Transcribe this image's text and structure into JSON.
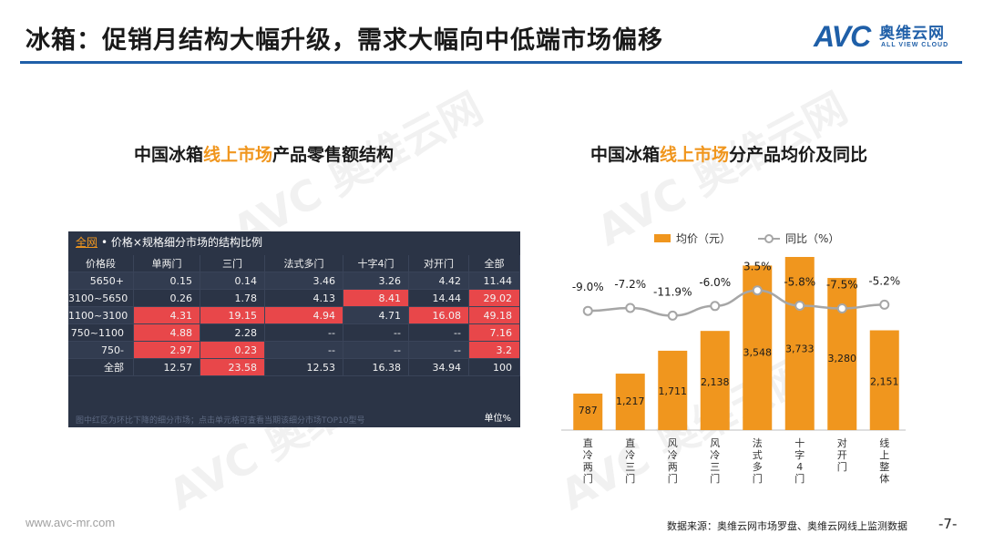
{
  "header": {
    "title": "冰箱：促销月结构大幅升级，需求大幅向中低端市场偏移",
    "logo_main": "AVC",
    "logo_cn": "奥维云网",
    "logo_en": "ALL VIEW CLOUD"
  },
  "colors": {
    "accent": "#f0961e",
    "brand": "#1f5fa8",
    "table_bg": "#2b3446",
    "hot": "#e8474a",
    "line": "#a6a6a6"
  },
  "left": {
    "title_pre": "中国冰箱",
    "title_hl": "线上市场",
    "title_post": "产品零售额结构",
    "table": {
      "tab": "全网",
      "caption": "• 价格×规格细分市场的结构比例",
      "columns": [
        "价格段",
        "单两门",
        "三门",
        "法式多门",
        "十字4门",
        "对开门",
        "全部"
      ],
      "rows": [
        {
          "label": "5650+",
          "cells": [
            "0.15",
            "0.14",
            "3.46",
            "3.26",
            "4.42",
            "11.44"
          ],
          "hot": [
            false,
            false,
            false,
            false,
            false,
            false
          ]
        },
        {
          "label": "3100~5650",
          "cells": [
            "0.26",
            "1.78",
            "4.13",
            "8.41",
            "14.44",
            "29.02"
          ],
          "hot": [
            false,
            false,
            false,
            true,
            false,
            true
          ]
        },
        {
          "label": "1100~3100",
          "cells": [
            "4.31",
            "19.15",
            "4.94",
            "4.71",
            "16.08",
            "49.18"
          ],
          "hot": [
            true,
            true,
            true,
            false,
            true,
            true
          ]
        },
        {
          "label": "750~1100",
          "cells": [
            "4.88",
            "2.28",
            "--",
            "--",
            "--",
            "7.16"
          ],
          "hot": [
            true,
            false,
            false,
            false,
            false,
            true
          ]
        },
        {
          "label": "750-",
          "cells": [
            "2.97",
            "0.23",
            "--",
            "--",
            "--",
            "3.2"
          ],
          "hot": [
            true,
            true,
            false,
            false,
            false,
            true
          ]
        },
        {
          "label": "全部",
          "cells": [
            "12.57",
            "23.58",
            "12.53",
            "16.38",
            "34.94",
            "100"
          ],
          "hot": [
            false,
            true,
            false,
            false,
            false,
            false
          ]
        }
      ],
      "footnote": "图中红区为环比下降的细分市场；点击单元格可查看当期该细分市场TOP10型号",
      "unit": "单位%"
    }
  },
  "right": {
    "title_pre": "中国冰箱",
    "title_hl": "线上市场",
    "title_post": "分产品均价及同比"
  },
  "chart_data": {
    "type": "bar",
    "categories": [
      "直冷两门",
      "直冷三门",
      "风冷两门",
      "风冷三门",
      "法式多门",
      "十字4门",
      "对开门",
      "线上整体"
    ],
    "series": [
      {
        "name": "均价（元）",
        "type": "bar",
        "values": [
          787,
          1217,
          1711,
          2138,
          3548,
          3733,
          3280,
          2151
        ],
        "labels": [
          "787",
          "1,217",
          "1,711",
          "2,138",
          "3,548",
          "3,733",
          "3,280",
          "2,151"
        ]
      },
      {
        "name": "同比（%）",
        "type": "line",
        "values": [
          -9.0,
          -7.2,
          -11.9,
          -6.0,
          3.5,
          -5.8,
          -7.5,
          -5.2
        ],
        "labels": [
          "-9.0%",
          "-7.2%",
          "-11.9%",
          "-6.0%",
          "3.5%",
          "-5.8%",
          "-7.5%",
          "-5.2%"
        ]
      }
    ],
    "grid": false,
    "legend": "top"
  },
  "footer": {
    "url": "www.avc-mr.com",
    "source": "数据来源：奥维云网市场罗盘、奥维云网线上监测数据",
    "page": "-7-"
  }
}
